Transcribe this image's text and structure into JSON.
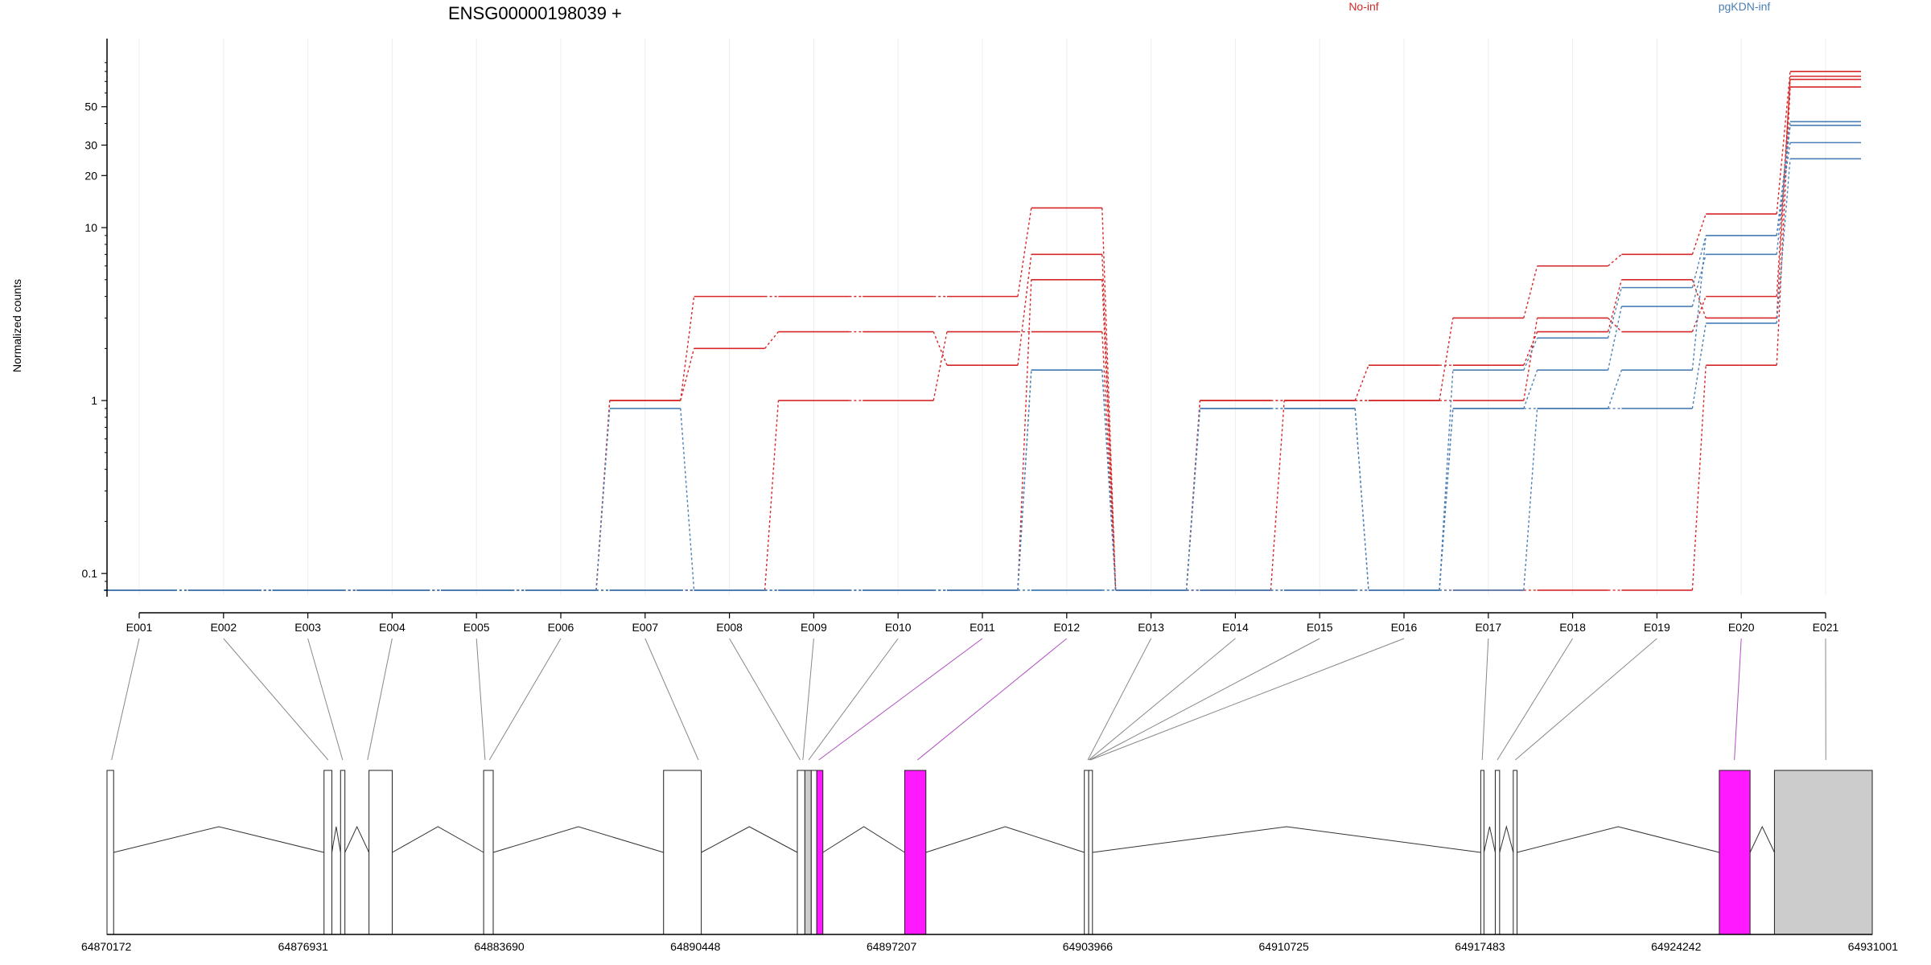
{
  "chart_data": {
    "type": "line",
    "title": "ENSG00000198039 +",
    "ylabel": "Normalized counts",
    "xlabel": "",
    "yscale": "log",
    "ylim": [
      0.075,
      100
    ],
    "yticks": [
      {
        "value": 0.1,
        "label": "0.1"
      },
      {
        "value": 1,
        "label": "1"
      },
      {
        "value": 10,
        "label": "10"
      },
      {
        "value": 20,
        "label": "20"
      },
      {
        "value": 30,
        "label": "30"
      },
      {
        "value": 50,
        "label": "50"
      }
    ],
    "grid": "vertical",
    "legend": [
      {
        "name": "No-inf",
        "color": "#d62728"
      },
      {
        "name": "pgKDN-inf",
        "color": "#4a7fb5"
      }
    ],
    "categories": [
      "E001",
      "E002",
      "E003",
      "E004",
      "E005",
      "E006",
      "E007",
      "E008",
      "E009",
      "E010",
      "E011",
      "E012",
      "E013",
      "E014",
      "E015",
      "E016",
      "E017",
      "E018",
      "E019",
      "E020",
      "E021"
    ],
    "series": [
      {
        "group": "No-inf",
        "color": "#d62728",
        "values": [
          0.08,
          0.08,
          0.08,
          0.08,
          0.08,
          0.08,
          1,
          4,
          4,
          4,
          4,
          13,
          0.08,
          1,
          1,
          1,
          3,
          6,
          7,
          12,
          80
        ]
      },
      {
        "group": "No-inf",
        "color": "#d62728",
        "values": [
          0.08,
          0.08,
          0.08,
          0.08,
          0.08,
          0.08,
          1,
          2,
          2.5,
          2.5,
          1.6,
          7,
          0.08,
          1,
          1,
          1.6,
          1.6,
          2.5,
          5,
          3,
          75
        ]
      },
      {
        "group": "No-inf",
        "color": "#d62728",
        "values": [
          0.08,
          0.08,
          0.08,
          0.08,
          0.08,
          0.08,
          0.08,
          0.08,
          1,
          1,
          2.5,
          2.5,
          0.08,
          0.08,
          1,
          1,
          1,
          3,
          2.5,
          4,
          72
        ]
      },
      {
        "group": "No-inf",
        "color": "#d62728",
        "values": [
          0.08,
          0.08,
          0.08,
          0.08,
          0.08,
          0.08,
          0.08,
          0.08,
          0.08,
          0.08,
          0.08,
          5,
          0.08,
          0.08,
          0.08,
          0.08,
          0.08,
          0.08,
          0.08,
          1.6,
          65
        ]
      },
      {
        "group": "pgKDN-inf",
        "color": "#4a7fb5",
        "values": [
          0.08,
          0.08,
          0.08,
          0.08,
          0.08,
          0.08,
          0.9,
          0.08,
          0.08,
          0.08,
          0.08,
          1.5,
          0.08,
          0.9,
          0.9,
          0.08,
          1.5,
          2.3,
          4.5,
          9,
          41
        ]
      },
      {
        "group": "pgKDN-inf",
        "color": "#4a7fb5",
        "values": [
          0.08,
          0.08,
          0.08,
          0.08,
          0.08,
          0.08,
          0.08,
          0.08,
          0.08,
          0.08,
          0.08,
          1.5,
          0.08,
          0.9,
          0.9,
          0.08,
          0.9,
          1.5,
          3.5,
          7,
          39
        ]
      },
      {
        "group": "pgKDN-inf",
        "color": "#4a7fb5",
        "values": [
          0.08,
          0.08,
          0.08,
          0.08,
          0.08,
          0.08,
          0.08,
          0.08,
          0.08,
          0.08,
          0.08,
          0.08,
          0.08,
          0.08,
          0.08,
          0.08,
          0.9,
          0.9,
          1.5,
          9,
          31
        ]
      },
      {
        "group": "pgKDN-inf",
        "color": "#4a7fb5",
        "values": [
          0.08,
          0.08,
          0.08,
          0.08,
          0.08,
          0.08,
          0.08,
          0.08,
          0.08,
          0.08,
          0.08,
          0.08,
          0.08,
          0.08,
          0.08,
          0.08,
          0.08,
          0.9,
          0.9,
          2.8,
          25
        ]
      }
    ],
    "gene_model": {
      "coordinate_labels": [
        "64870172",
        "64876931",
        "64883690",
        "64890448",
        "64897207",
        "64903966",
        "64910725",
        "64917483",
        "64924242",
        "64931001"
      ],
      "coord_min": 64870172,
      "coord_max": 64931001,
      "exons": [
        {
          "start": 64870172,
          "end": 64870400,
          "fill": "white"
        },
        {
          "start": 64877650,
          "end": 64877920,
          "fill": "white"
        },
        {
          "start": 64878220,
          "end": 64878370,
          "fill": "white"
        },
        {
          "start": 64879200,
          "end": 64880000,
          "fill": "white"
        },
        {
          "start": 64883150,
          "end": 64883480,
          "fill": "white"
        },
        {
          "start": 64889350,
          "end": 64890650,
          "fill": "white"
        },
        {
          "start": 64893960,
          "end": 64894220,
          "fill": "white"
        },
        {
          "start": 64894220,
          "end": 64894440,
          "fill": "#cccccc"
        },
        {
          "start": 64894440,
          "end": 64894630,
          "fill": "white"
        },
        {
          "start": 64894630,
          "end": 64894840,
          "fill": "#ff19ff"
        },
        {
          "start": 64897660,
          "end": 64898390,
          "fill": "#ff19ff"
        },
        {
          "start": 64903850,
          "end": 64904000,
          "fill": "white"
        },
        {
          "start": 64904000,
          "end": 64904130,
          "fill": "white"
        },
        {
          "start": 64917510,
          "end": 64917620,
          "fill": "white"
        },
        {
          "start": 64918010,
          "end": 64918160,
          "fill": "white"
        },
        {
          "start": 64918630,
          "end": 64918760,
          "fill": "white"
        },
        {
          "start": 64925730,
          "end": 64926790,
          "fill": "#ff19ff"
        },
        {
          "start": 64927630,
          "end": 64931001,
          "fill": "#cccccc"
        }
      ],
      "bin_map": [
        {
          "bin": "E001",
          "coord": 64870330,
          "color": "#888888"
        },
        {
          "bin": "E002",
          "coord": 64877790,
          "color": "#888888"
        },
        {
          "bin": "E003",
          "coord": 64878290,
          "color": "#888888"
        },
        {
          "bin": "E004",
          "coord": 64879150,
          "color": "#888888"
        },
        {
          "bin": "E005",
          "coord": 64883200,
          "color": "#888888"
        },
        {
          "bin": "E006",
          "coord": 64883350,
          "color": "#888888"
        },
        {
          "bin": "E007",
          "coord": 64890550,
          "color": "#888888"
        },
        {
          "bin": "E008",
          "coord": 64894060,
          "color": "#888888"
        },
        {
          "bin": "E009",
          "coord": 64894150,
          "color": "#888888"
        },
        {
          "bin": "E010",
          "coord": 64894350,
          "color": "#888888"
        },
        {
          "bin": "E011",
          "coord": 64894700,
          "color": "#b04fc0"
        },
        {
          "bin": "E012",
          "coord": 64898100,
          "color": "#b04fc0"
        },
        {
          "bin": "E013",
          "coord": 64903970,
          "color": "#888888"
        },
        {
          "bin": "E014",
          "coord": 64904000,
          "color": "#888888"
        },
        {
          "bin": "E015",
          "coord": 64904030,
          "color": "#888888"
        },
        {
          "bin": "E016",
          "coord": 64904060,
          "color": "#888888"
        },
        {
          "bin": "E017",
          "coord": 64917560,
          "color": "#888888"
        },
        {
          "bin": "E018",
          "coord": 64918080,
          "color": "#888888"
        },
        {
          "bin": "E019",
          "coord": 64918700,
          "color": "#888888"
        },
        {
          "bin": "E020",
          "coord": 64926250,
          "color": "#b04fc0"
        },
        {
          "bin": "E021",
          "coord": 64929400,
          "color": "#888888"
        }
      ]
    }
  }
}
